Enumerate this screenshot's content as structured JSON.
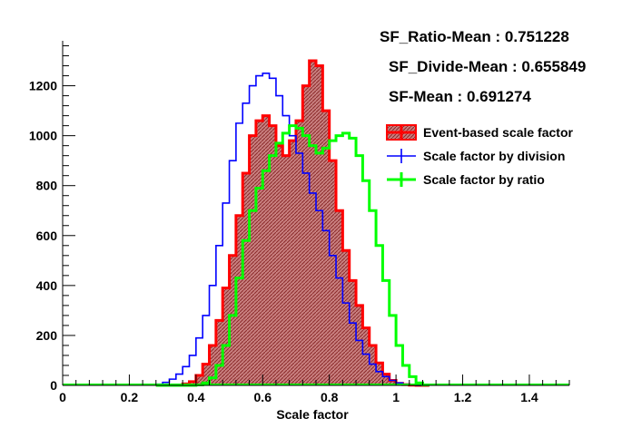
{
  "stats": {
    "ratio_mean": "SF_Ratio-Mean : 0.751228",
    "divide_mean": "SF_Divide-Mean : 0.655849",
    "sf_mean": "SF-Mean : 0.691274"
  },
  "chart_data": {
    "type": "histogram",
    "title": "",
    "xlabel": "Scale factor",
    "ylabel": "",
    "xlim": [
      0,
      1.52
    ],
    "ylim": [
      0,
      1380
    ],
    "grid": false,
    "legend_position": "right",
    "xticks": [
      0,
      0.2,
      0.4,
      0.6,
      0.8,
      1,
      1.2,
      1.4
    ],
    "xtick_labels": [
      "0",
      "0.2",
      "0.4",
      "0.6",
      "0.8",
      "1",
      "1.2",
      "1.4"
    ],
    "yticks": [
      0,
      200,
      400,
      600,
      800,
      1000,
      1200
    ],
    "ytick_labels": [
      "0",
      "200",
      "400",
      "600",
      "800",
      "1000",
      "1200"
    ],
    "x": [
      0.29,
      0.31,
      0.33,
      0.35,
      0.37,
      0.39,
      0.41,
      0.43,
      0.45,
      0.47,
      0.49,
      0.51,
      0.53,
      0.55,
      0.57,
      0.59,
      0.61,
      0.63,
      0.65,
      0.67,
      0.69,
      0.71,
      0.73,
      0.75,
      0.77,
      0.79,
      0.81,
      0.83,
      0.85,
      0.87,
      0.89,
      0.91,
      0.93,
      0.95,
      0.97,
      0.99,
      1.01,
      1.03,
      1.05,
      1.07,
      1.09
    ],
    "series": [
      {
        "name": "Event-based scale factor",
        "color": "#ff0000",
        "fill": "#b23b3b",
        "values": [
          0,
          0,
          0,
          2,
          6,
          15,
          40,
          85,
          160,
          260,
          390,
          520,
          680,
          850,
          1000,
          1060,
          1080,
          1040,
          960,
          920,
          980,
          1060,
          1200,
          1300,
          1280,
          1100,
          900,
          700,
          540,
          420,
          320,
          230,
          160,
          90,
          45,
          20,
          8,
          3,
          1,
          0,
          0
        ]
      },
      {
        "name": "Scale factor by division",
        "color": "#0000ff",
        "values": [
          5,
          12,
          25,
          45,
          75,
          120,
          190,
          280,
          400,
          560,
          730,
          900,
          1050,
          1130,
          1200,
          1240,
          1250,
          1230,
          1160,
          1080,
          1000,
          930,
          850,
          770,
          700,
          620,
          520,
          430,
          330,
          250,
          180,
          125,
          85,
          55,
          35,
          20,
          10,
          5,
          2,
          0,
          0
        ]
      },
      {
        "name": "Scale factor by ratio",
        "color": "#00ff00",
        "values": [
          0,
          0,
          0,
          0,
          0,
          0,
          2,
          10,
          30,
          80,
          160,
          280,
          430,
          580,
          700,
          790,
          860,
          920,
          970,
          1010,
          1040,
          1030,
          1000,
          960,
          930,
          950,
          980,
          1000,
          1010,
          990,
          920,
          820,
          700,
          560,
          420,
          280,
          160,
          80,
          35,
          10,
          2
        ]
      }
    ],
    "axis_max_label_x": "1.4",
    "extra": {
      "legend_entries": [
        "Event-based scale factor",
        "Scale factor by division",
        "Scale factor by ratio"
      ]
    }
  }
}
